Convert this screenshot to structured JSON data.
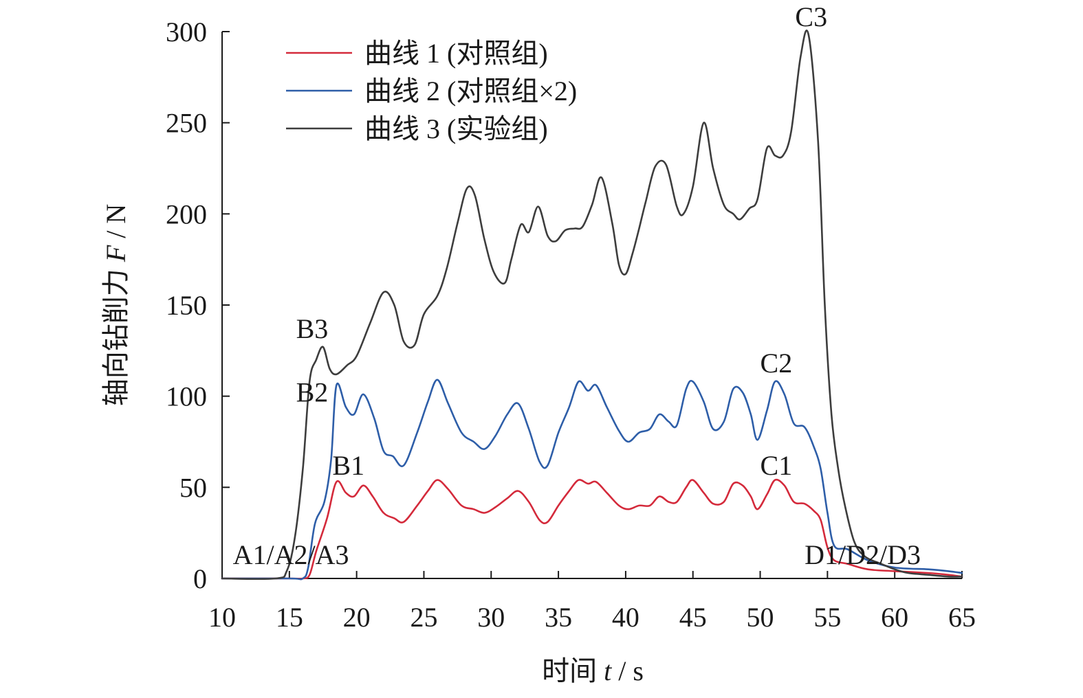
{
  "chart_data": {
    "type": "line",
    "xlabel": {
      "prefix": "时间 ",
      "var": "t",
      "suffix": " / s"
    },
    "ylabel": {
      "prefix": "轴向钻削力 ",
      "var": "F",
      "suffix": " / N"
    },
    "xlim": [
      10,
      65
    ],
    "ylim": [
      0,
      300
    ],
    "x_ticks": [
      10,
      15,
      20,
      25,
      30,
      35,
      40,
      45,
      50,
      55,
      60,
      65
    ],
    "y_ticks": [
      0,
      50,
      100,
      150,
      200,
      250,
      300
    ],
    "grid": false,
    "legend_position": "top-left",
    "series": [
      {
        "name": "曲线 1 (对照组)",
        "color": "#d42a3b",
        "x": [
          10,
          15,
          16.0,
          16.5,
          17.0,
          17.8,
          18.5,
          19.2,
          19.8,
          20.5,
          21.2,
          22.0,
          22.8,
          23.5,
          24.5,
          25.3,
          26.0,
          26.8,
          27.8,
          28.7,
          29.5,
          30.3,
          31.2,
          32.0,
          32.8,
          33.6,
          34.2,
          35.0,
          35.8,
          36.5,
          37.2,
          37.8,
          38.6,
          39.5,
          40.2,
          41.0,
          41.8,
          42.5,
          43.2,
          43.8,
          44.5,
          45.0,
          45.8,
          46.5,
          47.3,
          48.0,
          48.7,
          49.3,
          49.8,
          50.5,
          51.1,
          51.8,
          52.5,
          53.3,
          54.0,
          54.5,
          55.0,
          55.5,
          56.5,
          58.0,
          60.0,
          62.5,
          64.0,
          65.0
        ],
        "y": [
          0,
          0,
          0,
          2,
          15,
          33,
          53,
          47,
          45,
          51,
          45,
          36,
          33,
          31,
          40,
          48,
          54,
          49,
          40,
          38,
          36,
          39,
          44,
          48,
          42,
          32,
          31,
          40,
          48,
          54,
          52,
          53,
          47,
          40,
          38,
          40,
          40,
          45,
          42,
          42,
          50,
          54,
          47,
          41,
          42,
          52,
          51,
          45,
          38,
          46,
          54,
          51,
          42,
          41,
          37,
          32,
          17,
          10,
          8,
          5,
          4,
          3,
          2,
          1
        ]
      },
      {
        "name": "曲线 2 (对照组×2)",
        "color": "#2e5ea8",
        "x": [
          10,
          15,
          16.0,
          16.4,
          16.9,
          17.6,
          18.1,
          18.5,
          19.2,
          19.8,
          20.5,
          21.3,
          22.0,
          22.7,
          23.5,
          24.5,
          25.3,
          26.0,
          26.8,
          27.8,
          28.7,
          29.5,
          30.3,
          31.2,
          32.0,
          32.8,
          33.6,
          34.2,
          35.0,
          35.8,
          36.5,
          37.2,
          37.8,
          38.6,
          39.5,
          40.2,
          41.0,
          41.8,
          42.5,
          43.2,
          43.8,
          44.5,
          45.0,
          45.8,
          46.5,
          47.3,
          48.0,
          48.7,
          49.3,
          49.8,
          50.5,
          51.1,
          51.8,
          52.5,
          53.3,
          54.0,
          54.5,
          55.0,
          55.5,
          56.5,
          58.0,
          60.0,
          62.5,
          64.0,
          65.0
        ],
        "y": [
          0,
          0,
          0,
          6,
          30,
          42,
          65,
          106,
          94,
          90,
          101,
          88,
          70,
          67,
          62,
          80,
          97,
          109,
          96,
          80,
          75,
          71,
          78,
          90,
          96,
          82,
          64,
          62,
          80,
          94,
          108,
          103,
          106,
          94,
          81,
          75,
          80,
          82,
          90,
          86,
          84,
          104,
          108,
          97,
          82,
          86,
          104,
          102,
          90,
          76,
          92,
          108,
          101,
          85,
          83,
          72,
          60,
          36,
          18,
          16,
          10,
          6,
          5,
          4,
          3
        ]
      },
      {
        "name": "曲线 3 (实验组)",
        "color": "#3d3d3d",
        "x": [
          10,
          14.0,
          14.8,
          15.4,
          16.0,
          16.5,
          17.0,
          17.5,
          18.0,
          18.5,
          19.3,
          20.0,
          21.0,
          22.0,
          22.8,
          23.5,
          24.3,
          25.0,
          26.0,
          26.7,
          27.5,
          28.2,
          28.8,
          29.5,
          30.2,
          31.0,
          31.5,
          32.2,
          32.8,
          33.5,
          34.2,
          34.8,
          35.5,
          36.2,
          36.8,
          37.5,
          38.2,
          39.0,
          39.5,
          40.0,
          40.5,
          41.0,
          41.5,
          42.2,
          43.0,
          43.8,
          44.3,
          45.0,
          45.8,
          46.5,
          47.3,
          48.0,
          48.5,
          49.2,
          49.8,
          50.5,
          51.1,
          51.7,
          52.3,
          53.0,
          53.6,
          54.3,
          54.8,
          55.3,
          55.8,
          56.3,
          57.0,
          57.8,
          59.0,
          60.0,
          61.0,
          62.5,
          64.0,
          65.0
        ],
        "y": [
          0,
          0,
          4,
          22,
          60,
          108,
          120,
          127,
          115,
          112,
          117,
          122,
          140,
          157,
          150,
          130,
          128,
          145,
          155,
          170,
          195,
          214,
          210,
          186,
          168,
          162,
          175,
          194,
          190,
          204,
          188,
          185,
          191,
          192,
          193,
          205,
          220,
          195,
          172,
          167,
          178,
          192,
          207,
          226,
          227,
          204,
          200,
          215,
          250,
          225,
          205,
          200,
          197,
          203,
          208,
          236,
          232,
          232,
          245,
          286,
          298,
          240,
          150,
          90,
          60,
          40,
          20,
          12,
          8,
          5,
          3,
          2,
          1,
          1
        ]
      }
    ],
    "annotations": [
      {
        "text": "A1/A2/A3",
        "x": 10.8,
        "y": 8
      },
      {
        "text": "B1",
        "x": 18.2,
        "y": 57
      },
      {
        "text": "B2",
        "x": 15.5,
        "y": 97
      },
      {
        "text": "B3",
        "x": 15.5,
        "y": 132
      },
      {
        "text": "C1",
        "x": 50.0,
        "y": 57
      },
      {
        "text": "C2",
        "x": 50.0,
        "y": 113
      },
      {
        "text": "C3",
        "x": 52.6,
        "y": 303
      },
      {
        "text": "D1/D2/D3",
        "x": 53.3,
        "y": 8
      }
    ]
  }
}
